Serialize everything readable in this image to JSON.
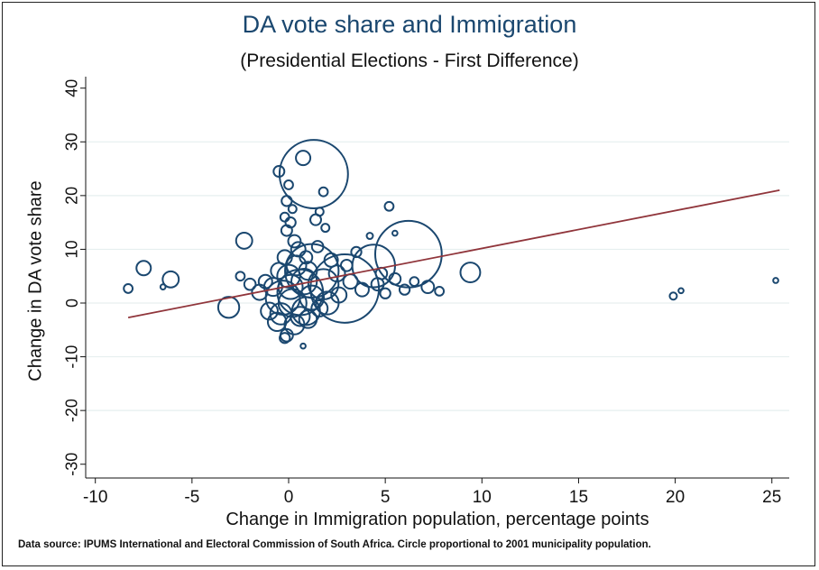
{
  "chart_data": {
    "type": "scatter",
    "title": "DA vote share and Immigration",
    "subtitle": "(Presidential Elections - First Difference)",
    "xlabel": "Change in Immigration population, percentage points",
    "ylabel": "Change in DA vote share",
    "note": "Data source: IPUMS International and Electoral Commission of South Africa. Circle proportional to 2001 municipality population.",
    "xlim": [
      -10.7,
      26
    ],
    "ylim": [
      -32,
      42
    ],
    "xticks": [
      -10,
      -5,
      0,
      5,
      10,
      15,
      20,
      25
    ],
    "yticks": [
      -30,
      -20,
      -10,
      0,
      10,
      20,
      30,
      40
    ],
    "grid": true,
    "colors": {
      "marker": "#1a476f",
      "fit": "#90353b",
      "grid": "#e6efef"
    },
    "fit_line": {
      "x": [
        -8.3,
        25.4
      ],
      "y": [
        -2.7,
        21.0
      ]
    },
    "points": [
      {
        "x": 1.3,
        "y": 24,
        "w": 360
      },
      {
        "x": 6.2,
        "y": 9.1,
        "w": 340
      },
      {
        "x": 2.9,
        "y": 2.7,
        "w": 360
      },
      {
        "x": 1.2,
        "y": 6,
        "w": 220
      },
      {
        "x": 4.4,
        "y": 6.9,
        "w": 140
      },
      {
        "x": 0.6,
        "y": 2,
        "w": 160
      },
      {
        "x": -0.3,
        "y": 1,
        "w": 90
      },
      {
        "x": 1.8,
        "y": 3.5,
        "w": 70
      },
      {
        "x": 0.9,
        "y": -1.5,
        "w": 60
      },
      {
        "x": -8.3,
        "y": 2.7,
        "w": 6
      },
      {
        "x": -7.5,
        "y": 6.5,
        "w": 16
      },
      {
        "x": -6.5,
        "y": 3,
        "w": 2
      },
      {
        "x": -6.1,
        "y": 4.4,
        "w": 20
      },
      {
        "x": -2.3,
        "y": 11.6,
        "w": 20
      },
      {
        "x": -3.1,
        "y": -0.8,
        "w": 34
      },
      {
        "x": 19.9,
        "y": 1.3,
        "w": 4
      },
      {
        "x": 20.3,
        "y": 2.3,
        "w": 2
      },
      {
        "x": 25.2,
        "y": 4.2,
        "w": 2
      },
      {
        "x": 9.4,
        "y": 5.7,
        "w": 30
      },
      {
        "x": 7.2,
        "y": 3,
        "w": 12
      },
      {
        "x": 7.8,
        "y": 2.2,
        "w": 6
      },
      {
        "x": 5.2,
        "y": 18,
        "w": 6
      },
      {
        "x": -0.5,
        "y": 24.5,
        "w": 9
      },
      {
        "x": 0.75,
        "y": 27,
        "w": 16
      },
      {
        "x": 1.8,
        "y": 20.7,
        "w": 6
      },
      {
        "x": 5.5,
        "y": 13,
        "w": 2
      },
      {
        "x": 0.75,
        "y": -8,
        "w": 2
      },
      {
        "x": -0.1,
        "y": -6,
        "w": 12
      },
      {
        "x": -0.2,
        "y": -6.5,
        "w": 8
      },
      {
        "x": 0,
        "y": 22,
        "w": 6
      },
      {
        "x": -0.1,
        "y": 19,
        "w": 8
      },
      {
        "x": 0.2,
        "y": 17.5,
        "w": 5
      },
      {
        "x": -0.2,
        "y": 16,
        "w": 6
      },
      {
        "x": 0.1,
        "y": 15,
        "w": 8
      },
      {
        "x": -0.1,
        "y": 13.5,
        "w": 9
      },
      {
        "x": 0.3,
        "y": 11.5,
        "w": 12
      },
      {
        "x": 1.6,
        "y": 17,
        "w": 5
      },
      {
        "x": 1.4,
        "y": 15.5,
        "w": 9
      },
      {
        "x": 1.9,
        "y": 14,
        "w": 5
      },
      {
        "x": 0.5,
        "y": 10,
        "w": 16
      },
      {
        "x": -1.2,
        "y": 4,
        "w": 14
      },
      {
        "x": -1.5,
        "y": 2,
        "w": 18
      },
      {
        "x": -1,
        "y": -1.5,
        "w": 22
      },
      {
        "x": -2,
        "y": 3.5,
        "w": 10
      },
      {
        "x": -2.5,
        "y": 5,
        "w": 6
      },
      {
        "x": -0.6,
        "y": -3.5,
        "w": 26
      },
      {
        "x": 0.3,
        "y": -4,
        "w": 30
      },
      {
        "x": 1,
        "y": -3,
        "w": 24
      },
      {
        "x": 2,
        "y": 0,
        "w": 40
      },
      {
        "x": 2.5,
        "y": 5.5,
        "w": 20
      },
      {
        "x": 3.2,
        "y": 4,
        "w": 16
      },
      {
        "x": 3.8,
        "y": 2.5,
        "w": 14
      },
      {
        "x": 4.6,
        "y": 3.5,
        "w": 12
      },
      {
        "x": 5,
        "y": 1.8,
        "w": 8
      },
      {
        "x": 5.5,
        "y": 4.5,
        "w": 10
      },
      {
        "x": 6,
        "y": 2.5,
        "w": 8
      },
      {
        "x": 3.5,
        "y": 9.5,
        "w": 8
      },
      {
        "x": 2.2,
        "y": 8,
        "w": 14
      },
      {
        "x": 1.5,
        "y": 10.5,
        "w": 10
      },
      {
        "x": 4.2,
        "y": 12.5,
        "w": 3
      },
      {
        "x": 0,
        "y": 5,
        "w": 40
      },
      {
        "x": 0.4,
        "y": 7,
        "w": 30
      },
      {
        "x": -0.5,
        "y": 6,
        "w": 20
      },
      {
        "x": 0.8,
        "y": 4,
        "w": 50
      },
      {
        "x": 0.2,
        "y": 0,
        "w": 60
      },
      {
        "x": 1.2,
        "y": 1,
        "w": 45
      },
      {
        "x": -0.4,
        "y": -2,
        "w": 35
      },
      {
        "x": 0.6,
        "y": -2.5,
        "w": 28
      },
      {
        "x": 1.6,
        "y": -1,
        "w": 20
      },
      {
        "x": 2.6,
        "y": 1.5,
        "w": 18
      },
      {
        "x": -0.8,
        "y": 3,
        "w": 25
      },
      {
        "x": 0.1,
        "y": 3,
        "w": 45
      },
      {
        "x": 1.0,
        "y": 6,
        "w": 25
      },
      {
        "x": -0.2,
        "y": 8.5,
        "w": 16
      },
      {
        "x": 0.9,
        "y": 8.5,
        "w": 12
      },
      {
        "x": 4.8,
        "y": 5.5,
        "w": 10
      },
      {
        "x": 6.5,
        "y": 4,
        "w": 6
      },
      {
        "x": 3,
        "y": 7,
        "w": 10
      }
    ]
  }
}
